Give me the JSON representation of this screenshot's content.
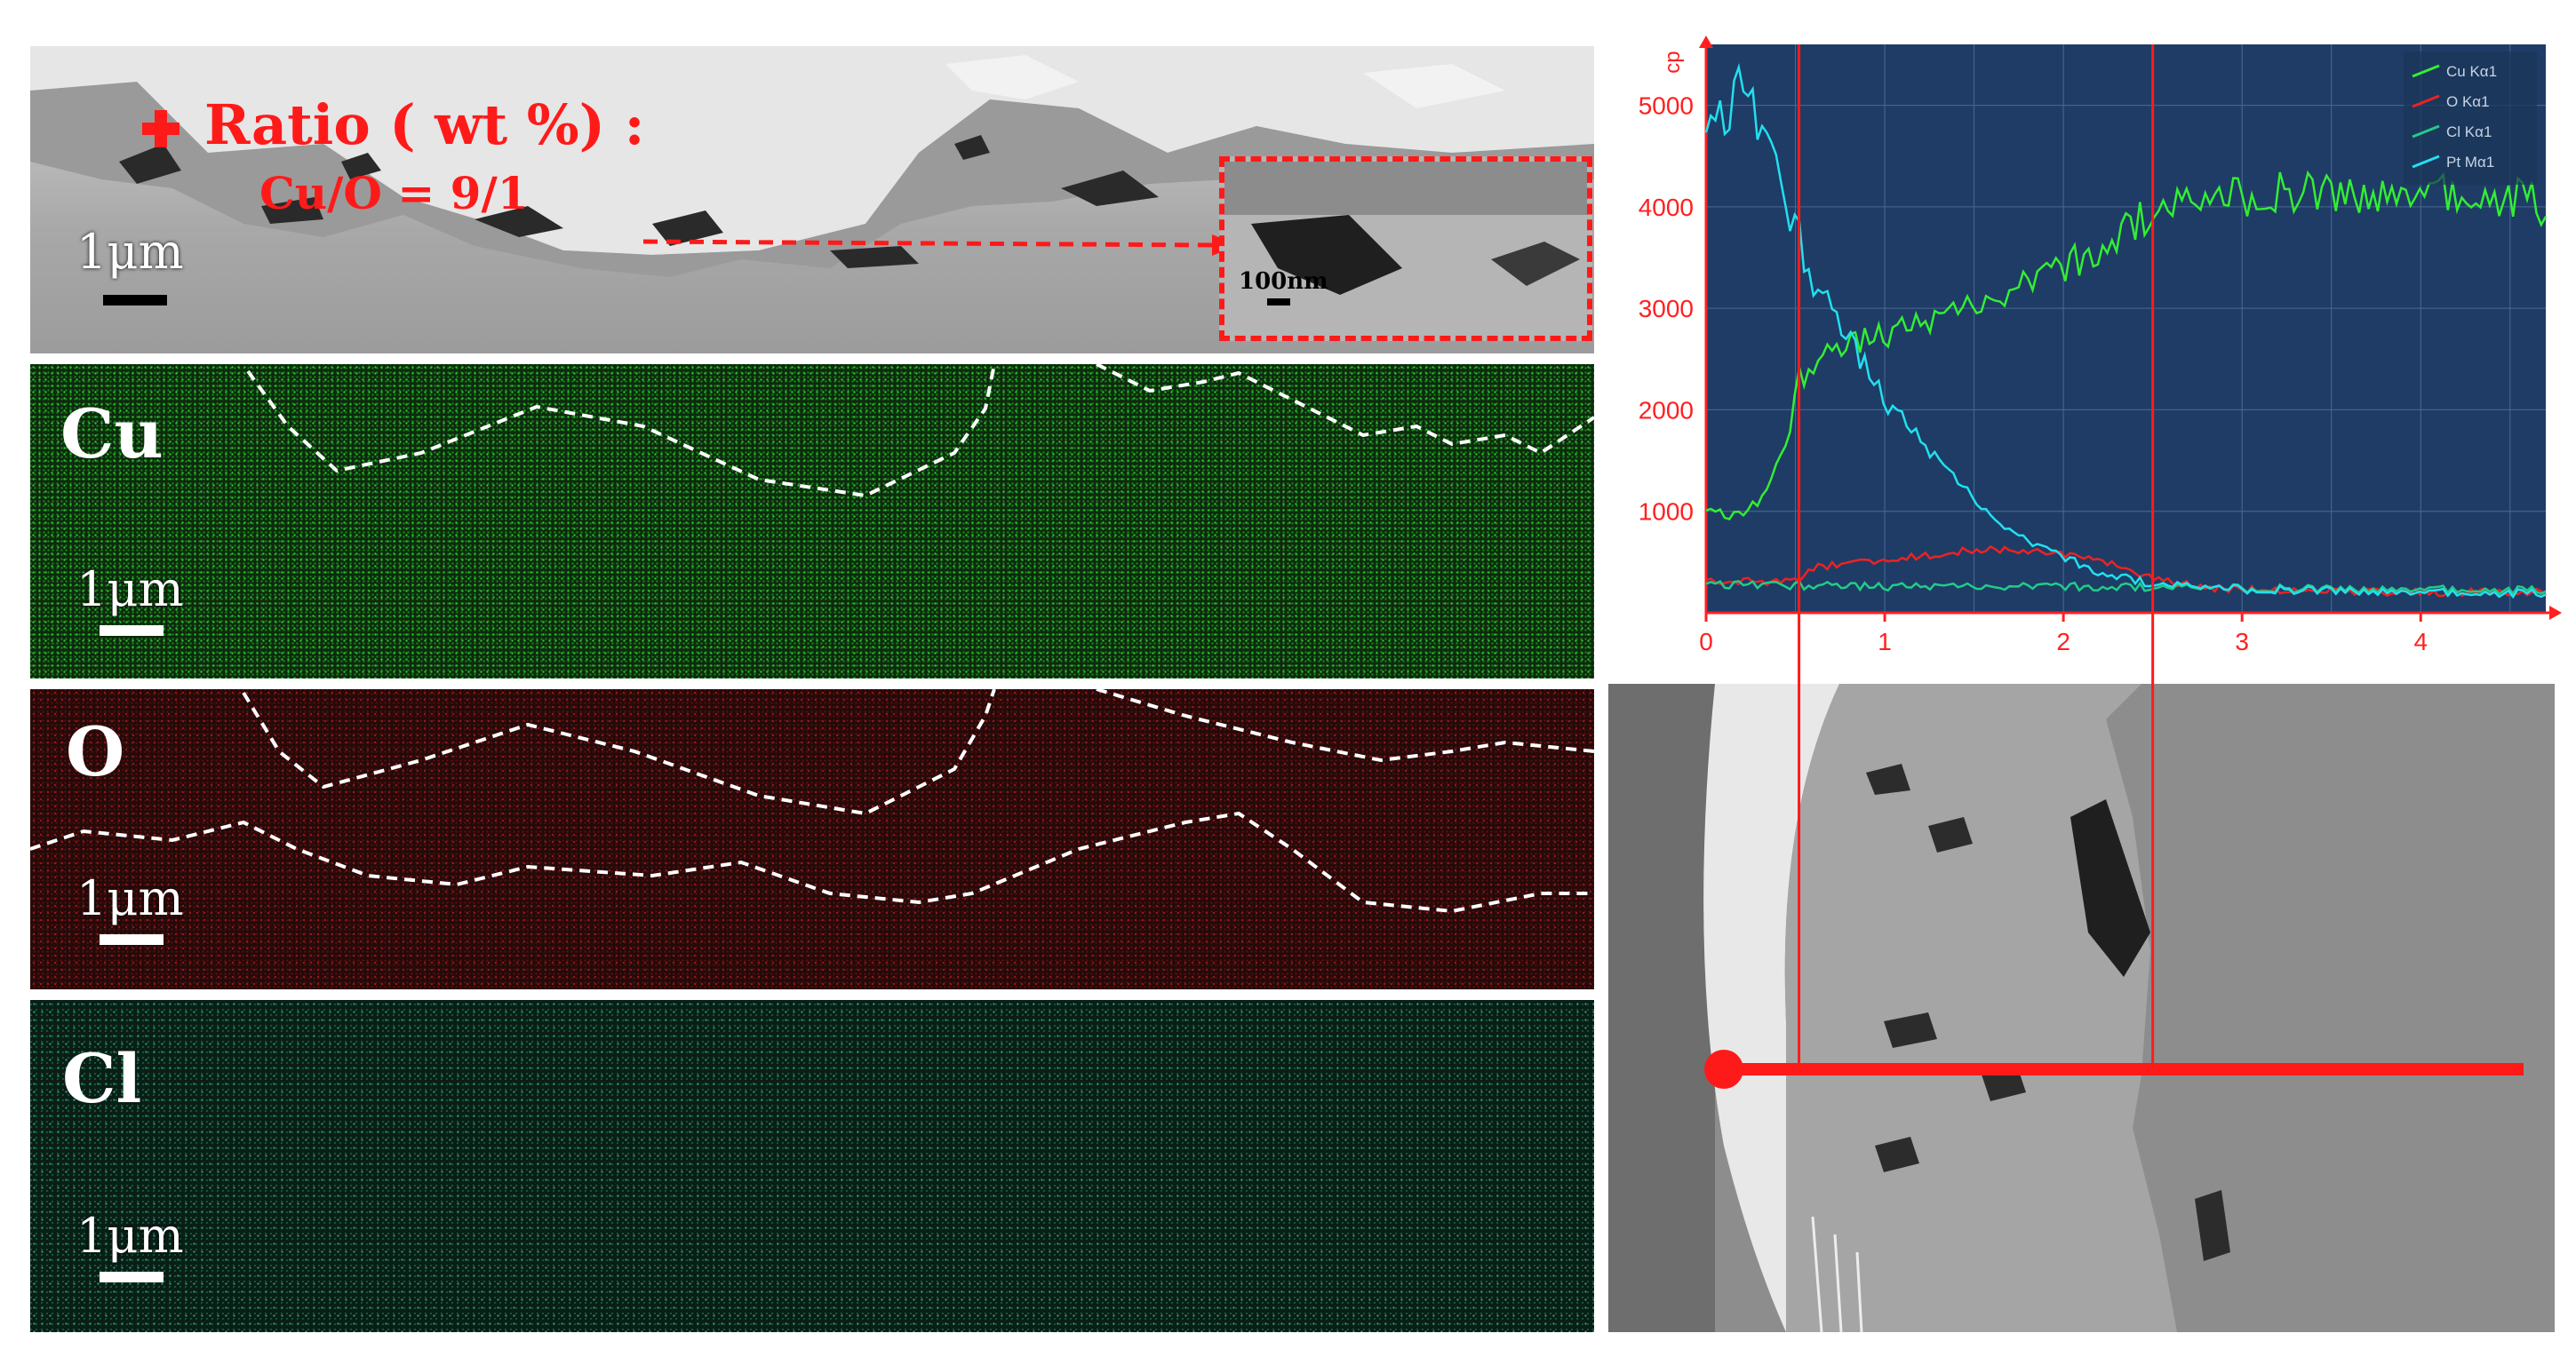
{
  "sem_top": {
    "ratio_label": "Ratio ( wt %) :",
    "ratio_value": "Cu/O = 9/1",
    "scale_main": "1μm",
    "scale_inset": "100nm"
  },
  "maps": [
    {
      "element": "Cu",
      "scale": "1μm",
      "color": "#2bd12f"
    },
    {
      "element": "O",
      "scale": "1μm",
      "color": "#a11a1a"
    },
    {
      "element": "Cl",
      "scale": "1μm",
      "color": "#22b080"
    }
  ],
  "chart_data": {
    "type": "line",
    "ylabel": "cp",
    "xlim": [
      0,
      4.7
    ],
    "ylim": [
      0,
      5600
    ],
    "y_ticks": [
      1000,
      2000,
      3000,
      4000,
      5000
    ],
    "x_ticks": [
      0,
      1,
      2,
      3,
      4
    ],
    "grid": true,
    "legend_position": "top-right",
    "markers_x": [
      0.52,
      2.5
    ],
    "series": [
      {
        "name": "Cu Kα1",
        "color": "#33ee33",
        "x": [
          0,
          0.2,
          0.35,
          0.45,
          0.52,
          0.6,
          0.8,
          1.0,
          1.3,
          1.6,
          2.0,
          2.3,
          2.5,
          2.8,
          3.0,
          3.3,
          3.6,
          4.0,
          4.3,
          4.6,
          4.7
        ],
        "values": [
          1000,
          950,
          1200,
          1700,
          2300,
          2450,
          2650,
          2750,
          2900,
          3100,
          3400,
          3700,
          3950,
          4050,
          4100,
          4150,
          4120,
          4130,
          4100,
          4080,
          3950
        ]
      },
      {
        "name": "O Kα1",
        "color": "#ee2222",
        "x": [
          0,
          0.5,
          0.6,
          1.0,
          1.5,
          1.8,
          2.1,
          2.3,
          2.5,
          2.8,
          3.2,
          4.0,
          4.7
        ],
        "values": [
          320,
          310,
          450,
          520,
          620,
          600,
          560,
          470,
          330,
          240,
          220,
          200,
          200
        ]
      },
      {
        "name": "Cl Kα1",
        "color": "#22cc88",
        "x": [
          0,
          1.0,
          2.0,
          3.0,
          4.0,
          4.7
        ],
        "values": [
          280,
          260,
          260,
          240,
          230,
          220
        ]
      },
      {
        "name": "Pt Mα1",
        "color": "#22e0ee",
        "x": [
          0,
          0.1,
          0.2,
          0.3,
          0.4,
          0.5,
          0.6,
          0.8,
          1.0,
          1.2,
          1.4,
          1.6,
          1.8,
          2.0,
          2.2,
          2.5,
          3.0,
          3.5,
          4.0,
          4.7
        ],
        "values": [
          4700,
          4900,
          5200,
          4800,
          4300,
          3800,
          3250,
          2700,
          2100,
          1700,
          1300,
          950,
          700,
          550,
          400,
          280,
          230,
          220,
          200,
          190
        ]
      }
    ]
  },
  "colors": {
    "annotation_red": "#ff1a1a",
    "chart_bg": "#1e3c66"
  }
}
